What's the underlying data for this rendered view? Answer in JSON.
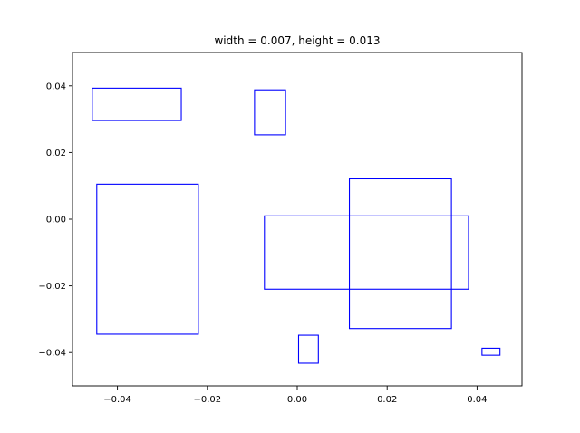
{
  "chart_data": {
    "type": "scatter",
    "title": "width = 0.007, height = 0.013",
    "xlabel": "",
    "ylabel": "",
    "xlim": [
      -0.05,
      0.05
    ],
    "ylim": [
      -0.05,
      0.05
    ],
    "grid": false,
    "rect_color": "#0000ff",
    "x_ticks": [
      {
        "value": -0.04,
        "label": "−0.04"
      },
      {
        "value": -0.02,
        "label": "−0.02"
      },
      {
        "value": 0.0,
        "label": "0.00"
      },
      {
        "value": 0.02,
        "label": "0.02"
      },
      {
        "value": 0.04,
        "label": "0.04"
      }
    ],
    "y_ticks": [
      {
        "value": 0.04,
        "label": "0.04"
      },
      {
        "value": 0.02,
        "label": "0.02"
      },
      {
        "value": 0.0,
        "label": "0.00"
      },
      {
        "value": -0.02,
        "label": "−0.02"
      },
      {
        "value": -0.04,
        "label": "−0.04"
      }
    ],
    "rectangles": [
      {
        "x0": -0.0456,
        "x1": -0.0258,
        "y0": 0.0296,
        "y1": 0.0393
      },
      {
        "x0": -0.0095,
        "x1": -0.0026,
        "y0": 0.0253,
        "y1": 0.0388
      },
      {
        "x0": -0.0446,
        "x1": -0.022,
        "y0": -0.0345,
        "y1": 0.0105
      },
      {
        "x0": -0.0073,
        "x1": 0.0381,
        "y0": -0.021,
        "y1": 0.001
      },
      {
        "x0": 0.0116,
        "x1": 0.0343,
        "y0": -0.0328,
        "y1": 0.0121
      },
      {
        "x0": 0.0003,
        "x1": 0.0047,
        "y0": -0.0432,
        "y1": -0.0348
      },
      {
        "x0": 0.0411,
        "x1": 0.0451,
        "y0": -0.0408,
        "y1": -0.0387
      }
    ]
  }
}
